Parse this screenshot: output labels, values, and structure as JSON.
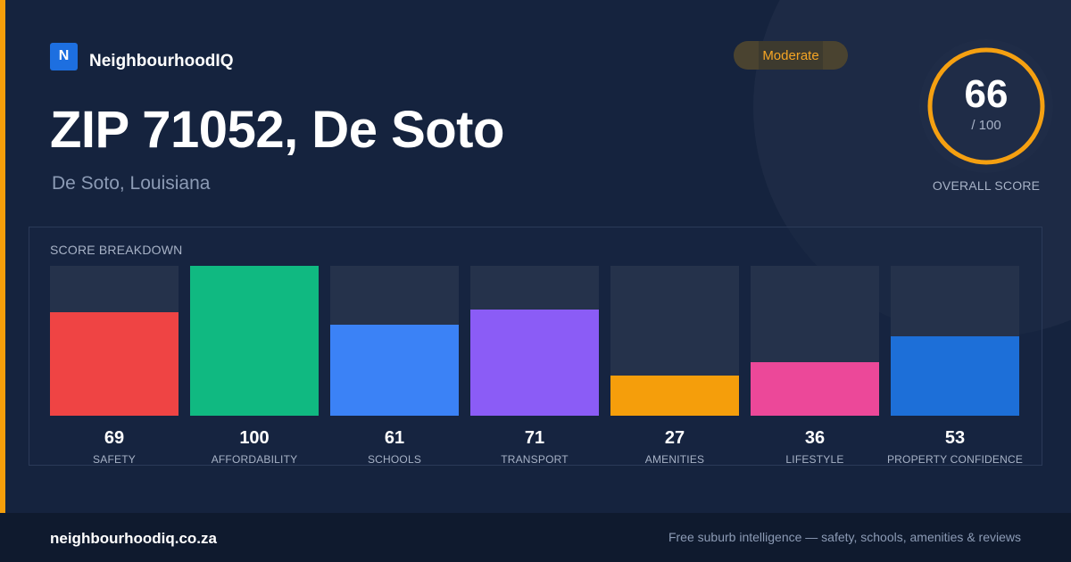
{
  "brand": {
    "logo_letter": "N",
    "name": "NeighbourhoodIQ"
  },
  "badge": {
    "label": "Moderate",
    "color": "#f5a524"
  },
  "header": {
    "title": "ZIP 71052, De Soto",
    "subtitle": "De Soto, Louisiana"
  },
  "overall": {
    "score": "66",
    "max_label": "/ 100",
    "label": "OVERALL SCORE",
    "fraction": 0.66,
    "ring_color": "#f5a011"
  },
  "breakdown": {
    "title": "SCORE BREAKDOWN",
    "items": [
      {
        "value": "69",
        "label": "SAFETY",
        "score": 69,
        "color": "#ef4444"
      },
      {
        "value": "100",
        "label": "AFFORDABILITY",
        "score": 100,
        "color": "#10b981"
      },
      {
        "value": "61",
        "label": "SCHOOLS",
        "score": 61,
        "color": "#3b82f6"
      },
      {
        "value": "71",
        "label": "TRANSPORT",
        "score": 71,
        "color": "#8b5cf6"
      },
      {
        "value": "27",
        "label": "AMENITIES",
        "score": 27,
        "color": "#f59e0b"
      },
      {
        "value": "36",
        "label": "LIFESTYLE",
        "score": 36,
        "color": "#ec4899"
      },
      {
        "value": "53",
        "label": "PROPERTY CONFIDENCE",
        "score": 53,
        "color": "#1d6fd8"
      }
    ]
  },
  "footer": {
    "url": "neighbourhoodiq.co.za",
    "tagline": "Free suburb intelligence — safety, schools, amenities & reviews"
  }
}
